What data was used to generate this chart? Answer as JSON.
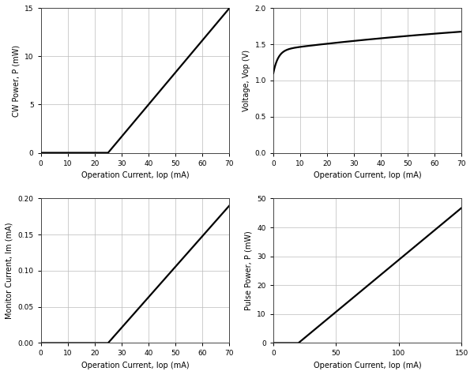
{
  "plot1": {
    "xlabel": "Operation Current, Iop (mA)",
    "ylabel": "CW Power, P (mW)",
    "xlim": [
      0,
      70
    ],
    "ylim": [
      0,
      15
    ],
    "xticks": [
      0,
      10,
      20,
      30,
      40,
      50,
      60,
      70
    ],
    "yticks": [
      0,
      5,
      10,
      15
    ],
    "threshold": 25,
    "x_end": 70,
    "slope": 0.333
  },
  "plot2": {
    "xlabel": "Operation Current, Iop (mA)",
    "ylabel": "Voltage, Vop (V)",
    "xlim": [
      0,
      70
    ],
    "ylim": [
      0.0,
      2.0
    ],
    "xticks": [
      0,
      10,
      20,
      30,
      40,
      50,
      60,
      70
    ],
    "yticks": [
      0.0,
      0.5,
      1.0,
      1.5,
      2.0
    ],
    "V0": 1.1,
    "A1": 0.32,
    "tau1": 1.8,
    "A2": 0.58,
    "tau2": 120.0
  },
  "plot3": {
    "xlabel": "Operation Current, Iop (mA)",
    "ylabel": "Monitor Current, Im (mA)",
    "xlim": [
      0,
      70
    ],
    "ylim": [
      0.0,
      0.2
    ],
    "xticks": [
      0,
      10,
      20,
      30,
      40,
      50,
      60,
      70
    ],
    "yticks": [
      0.0,
      0.05,
      0.1,
      0.15,
      0.2
    ],
    "threshold": 25,
    "x_end": 70,
    "slope": 0.00422
  },
  "plot4": {
    "xlabel": "Operation Current, Iop (mA)",
    "ylabel": "Pulse Power, P (mW)",
    "xlim": [
      0,
      150
    ],
    "ylim": [
      0,
      50
    ],
    "xticks": [
      0,
      50,
      100,
      150
    ],
    "yticks": [
      0,
      10,
      20,
      30,
      40,
      50
    ],
    "threshold": 20,
    "x_end": 150,
    "slope": 0.36
  },
  "line_color": "#000000",
  "line_width": 1.6,
  "grid_color": "#bbbbbb",
  "bg_color": "#ffffff",
  "label_fontsize": 7.0,
  "tick_fontsize": 6.5
}
